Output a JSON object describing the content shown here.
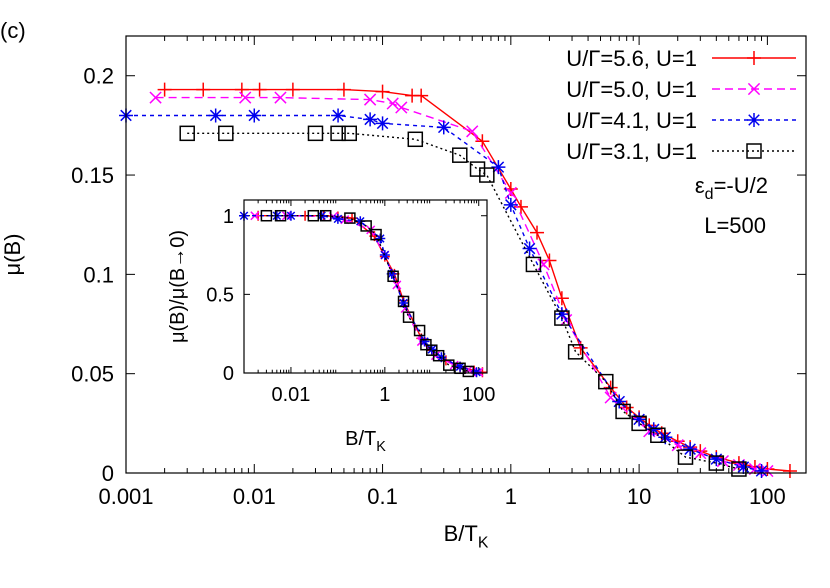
{
  "panel_label": "(c)",
  "chart_data": [
    {
      "type": "line",
      "x_scale": "log",
      "xlabel": "B/T",
      "xlabel_sub": "K",
      "ylabel": "μ(B)",
      "xlim": [
        0.001,
        200
      ],
      "ylim": [
        0,
        0.22
      ],
      "x_ticks": [
        0.001,
        0.01,
        0.1,
        1,
        10,
        100
      ],
      "x_tick_labels": [
        "0.001",
        "0.01",
        "0.1",
        "1",
        "10",
        "100"
      ],
      "y_ticks": [
        0,
        0.05,
        0.1,
        0.15,
        0.2
      ],
      "y_tick_labels": [
        "0",
        "0.05",
        "0.1",
        "0.15",
        "0.2"
      ],
      "legend_position": "top-right",
      "annotations": [
        {
          "text": "ε",
          "sub": "d",
          "rest": "=-U/2"
        },
        {
          "text": "L=500"
        }
      ],
      "series": [
        {
          "name": "U/Γ=5.6, U=1",
          "color": "#ff0000",
          "dash": "solid",
          "marker": "plus",
          "x": [
            0.002,
            0.004,
            0.008,
            0.011,
            0.02,
            0.05,
            0.1,
            0.17,
            0.2,
            0.6,
            1.0,
            1.2,
            1.6,
            2.0,
            2.5,
            3.5,
            6,
            8,
            10,
            12,
            15,
            20,
            25,
            30,
            40,
            60,
            80,
            100,
            150
          ],
          "y": [
            0.193,
            0.193,
            0.193,
            0.193,
            0.193,
            0.193,
            0.192,
            0.19,
            0.19,
            0.167,
            0.143,
            0.134,
            0.121,
            0.107,
            0.088,
            0.063,
            0.043,
            0.033,
            0.028,
            0.024,
            0.02,
            0.016,
            0.013,
            0.011,
            0.008,
            0.005,
            0.003,
            0.002,
            0.001
          ]
        },
        {
          "name": "U/Γ=5.0, U=1",
          "color": "#ff00ff",
          "dash": "8,5",
          "marker": "x",
          "x": [
            0.0017,
            0.0085,
            0.016,
            0.08,
            0.12,
            0.14,
            0.5,
            1.0,
            1.8,
            2.7,
            6,
            12,
            20,
            30,
            45,
            60,
            80,
            100
          ],
          "y": [
            0.189,
            0.189,
            0.189,
            0.188,
            0.186,
            0.184,
            0.172,
            0.141,
            0.105,
            0.077,
            0.038,
            0.021,
            0.014,
            0.01,
            0.006,
            0.004,
            0.002,
            0.001
          ]
        },
        {
          "name": "U/Γ=4.1, U=1",
          "color": "#0000ee",
          "dash": "4,4",
          "marker": "star",
          "x": [
            0.001,
            0.005,
            0.01,
            0.045,
            0.08,
            0.1,
            0.3,
            0.8,
            1.0,
            1.4,
            2.5,
            7,
            10,
            13,
            16,
            25,
            40,
            65,
            90
          ],
          "y": [
            0.18,
            0.18,
            0.18,
            0.18,
            0.178,
            0.176,
            0.174,
            0.154,
            0.135,
            0.113,
            0.08,
            0.036,
            0.027,
            0.022,
            0.018,
            0.012,
            0.007,
            0.003,
            0.001
          ]
        },
        {
          "name": "U/Γ=3.1, U=1",
          "color": "#000000",
          "dash": "2,3",
          "marker": "square",
          "x": [
            0.003,
            0.006,
            0.03,
            0.045,
            0.055,
            0.18,
            0.4,
            0.55,
            0.65,
            1.5,
            2.5,
            3.2,
            5.5,
            7.5,
            10,
            14,
            23,
            40,
            60
          ],
          "y": [
            0.171,
            0.171,
            0.171,
            0.171,
            0.171,
            0.168,
            0.16,
            0.153,
            0.15,
            0.105,
            0.078,
            0.061,
            0.046,
            0.031,
            0.025,
            0.019,
            0.008,
            0.005,
            0.002
          ]
        }
      ]
    },
    {
      "type": "line",
      "x_scale": "log",
      "xlabel": "B/T",
      "xlabel_sub": "K",
      "ylabel": "μ(B)/μ(B→0)",
      "xlim": [
        0.001,
        150
      ],
      "ylim": [
        0,
        1.1
      ],
      "x_ticks": [
        0.01,
        1,
        100
      ],
      "x_tick_labels": [
        "0.01",
        "1",
        "100"
      ],
      "y_ticks": [
        0,
        0.5,
        1
      ],
      "y_tick_labels": [
        "0",
        "0.5",
        "1"
      ],
      "series": [
        {
          "name": "U/Γ=5.6, U=1",
          "color": "#ff0000",
          "dash": "solid",
          "marker": "plus",
          "x": [
            0.002,
            0.005,
            0.02,
            0.05,
            0.1,
            0.2,
            0.6,
            1.0,
            1.6,
            2.5,
            6,
            10,
            20,
            40,
            80,
            120
          ],
          "y": [
            1,
            1,
            1,
            1,
            0.995,
            0.985,
            0.87,
            0.74,
            0.63,
            0.46,
            0.22,
            0.145,
            0.08,
            0.04,
            0.015,
            0.005
          ]
        },
        {
          "name": "U/Γ=5.0, U=1",
          "color": "#ff00ff",
          "dash": "8,5",
          "marker": "x",
          "x": [
            0.0017,
            0.008,
            0.08,
            0.14,
            0.5,
            1.0,
            1.8,
            2.7,
            6,
            12,
            30,
            60,
            100
          ],
          "y": [
            1,
            1,
            0.995,
            0.975,
            0.91,
            0.75,
            0.56,
            0.41,
            0.2,
            0.11,
            0.05,
            0.02,
            0.005
          ]
        },
        {
          "name": "U/Γ=4.1, U=1",
          "color": "#0000ee",
          "dash": "4,4",
          "marker": "star",
          "x": [
            0.001,
            0.005,
            0.01,
            0.045,
            0.1,
            0.3,
            0.8,
            1.0,
            1.4,
            2.5,
            7,
            10,
            16,
            40,
            90
          ],
          "y": [
            1,
            1,
            1,
            1,
            0.98,
            0.965,
            0.855,
            0.75,
            0.63,
            0.445,
            0.2,
            0.15,
            0.1,
            0.04,
            0.005
          ]
        },
        {
          "name": "U/Γ=3.1, U=1",
          "color": "#000000",
          "dash": "2,3",
          "marker": "square",
          "x": [
            0.003,
            0.006,
            0.03,
            0.055,
            0.18,
            0.4,
            0.65,
            1.5,
            2.5,
            3.2,
            5.5,
            7.5,
            10,
            14,
            23,
            40,
            60
          ],
          "y": [
            1,
            1,
            1,
            1,
            0.985,
            0.935,
            0.88,
            0.615,
            0.455,
            0.355,
            0.27,
            0.18,
            0.145,
            0.11,
            0.05,
            0.03,
            0.01
          ]
        }
      ]
    }
  ]
}
